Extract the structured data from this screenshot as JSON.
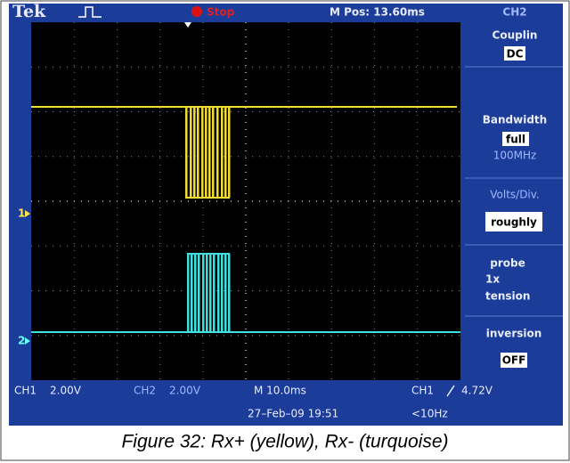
{
  "header": {
    "brand": "Tek",
    "state": "Stop",
    "position": "M Pos: 13.60ms",
    "channel": "CH2"
  },
  "menu": {
    "coupling": {
      "label": "Couplin",
      "value": "DC"
    },
    "bandwidth": {
      "label": "Bandwidth",
      "value": "full",
      "limit": "100MHz"
    },
    "volts_div": {
      "label": "Volts/Div.",
      "value": "roughly"
    },
    "probe": {
      "label": "probe",
      "value": "1x",
      "unit": "tension"
    },
    "inversion": {
      "label": "inversion",
      "value": "OFF"
    }
  },
  "markers": {
    "ch1": "1",
    "ch2": "2"
  },
  "status": {
    "ch1_label": "CH1",
    "ch1_scale": "2.00V",
    "ch2_label": "CH2",
    "ch2_scale": "2.00V",
    "timebase": "M 10.0ms",
    "trigger_source": "CH1",
    "trigger_level": "4.72V",
    "date": "27–Feb–09 19:51",
    "frequency": "<10Hz"
  },
  "caption": "Figure 32: Rx+ (yellow), Rx- (turquoise)"
}
